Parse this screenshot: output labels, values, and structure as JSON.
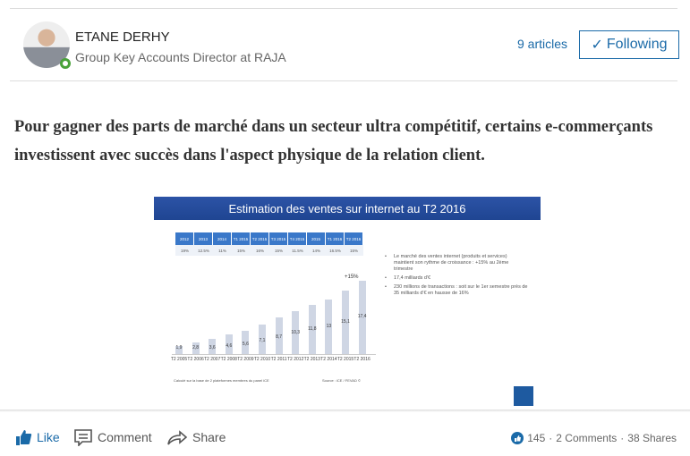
{
  "author": {
    "name": "ETANE DERHY",
    "role": "Group Key Accounts Director at RAJA",
    "articles": "9 articles",
    "follow_label": "Following"
  },
  "article": {
    "lead": "Pour gagner des parts de marché dans un secteur ultra compétitif, certains e-commerçants investissent avec succès dans l'aspect physique de la relation client."
  },
  "image": {
    "title": "Estimation des ventes sur internet au T2 2016",
    "table": {
      "headers": [
        "2012",
        "2013",
        "2014",
        "T1 2015",
        "T2 2015",
        "T3 2015",
        "T4 2015",
        "2015",
        "T1 2016",
        "T2 2016"
      ],
      "values": [
        "19%",
        "12.5%",
        "11%",
        "15%",
        "16%",
        "15%",
        "11.5%",
        "14%",
        "16.5%",
        "15%"
      ]
    },
    "bullets": [
      "Le marché des ventes internet (produits et services) maintient son rythme de croissance : +15% au 2ème trimestre",
      "17,4 milliards d'€",
      "230 millions de transactions : soit sur le 1er semestre près de 35 milliards d'€ en hausse de 16%"
    ],
    "growth_label": "+15%",
    "note": "Calculé sur la base de 2 plateformes membres du panel iCE",
    "source": "Source : iCE / FEVAD ©",
    "bar_color": "#cfd6e4",
    "title_color": "#2c53a6"
  },
  "chart_data": {
    "type": "bar",
    "categories": [
      "T2 2005",
      "T2 2006",
      "T2 2007",
      "T2 2008",
      "T2 2009",
      "T2 2010",
      "T2 2011",
      "T2 2012",
      "T2 2013",
      "T2 2014",
      "T2 2015",
      "T2 2016"
    ],
    "values": [
      1.9,
      2.8,
      3.6,
      4.6,
      5.6,
      7.1,
      8.7,
      10.3,
      11.8,
      13,
      15.1,
      17.4
    ],
    "labels": [
      "1,9",
      "2,8",
      "3,6",
      "4,6",
      "5,6",
      "7,1",
      "8,7",
      "10,3",
      "11,8",
      "13",
      "15,1",
      "17,4"
    ]
  },
  "actions": {
    "like": "Like",
    "comment": "Comment",
    "share": "Share"
  },
  "stats": {
    "likes": "145",
    "comments": "2 Comments",
    "shares": "38 Shares",
    "separator": "·"
  },
  "colors": {
    "link": "#1a6aa8",
    "online": "#4aa23a"
  }
}
